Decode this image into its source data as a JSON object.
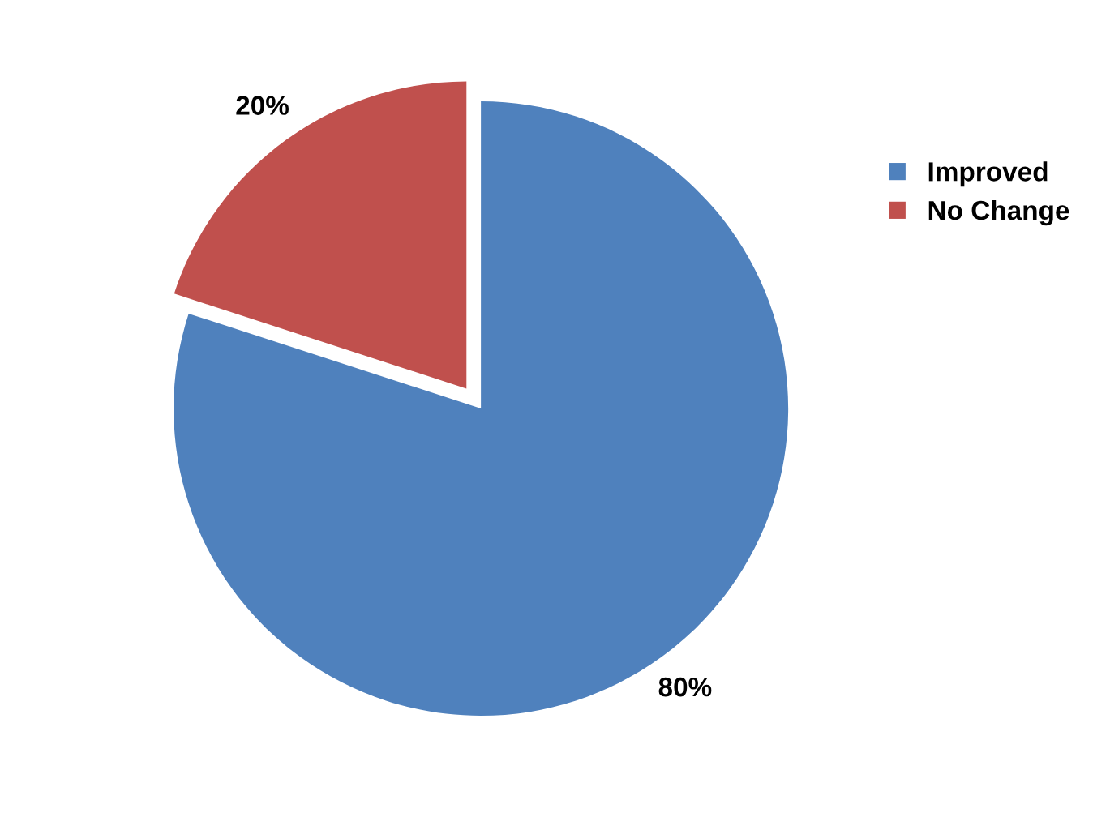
{
  "chart_data": {
    "type": "pie",
    "categories": [
      "Improved",
      "No Change"
    ],
    "values": [
      80,
      20
    ],
    "colors": [
      "#4f81bd",
      "#c0504d"
    ],
    "value_labels": [
      "80%",
      "20%"
    ],
    "legend": "right"
  }
}
